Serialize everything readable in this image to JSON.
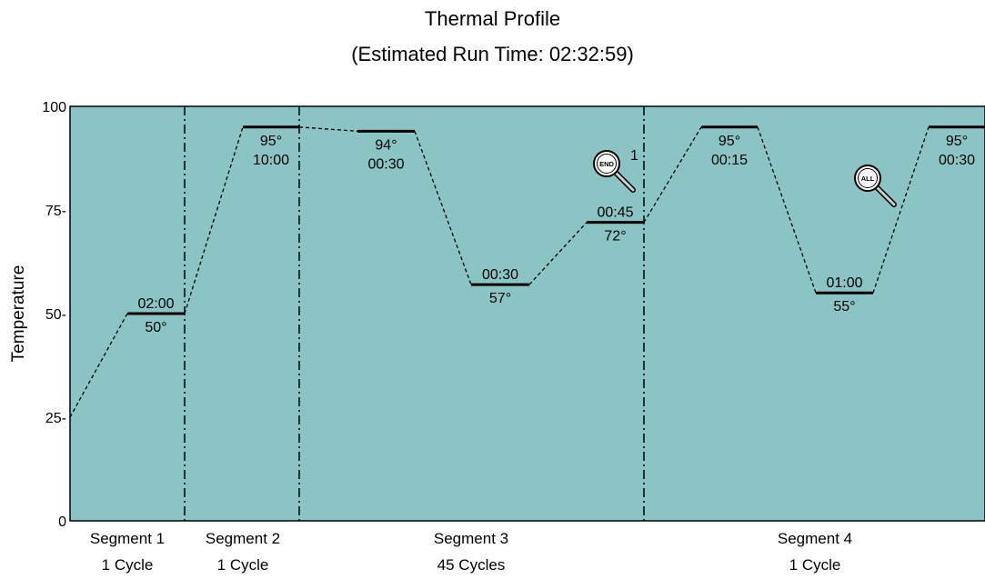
{
  "chart_data": {
    "type": "line",
    "title": "Thermal Profile",
    "subtitle": "(Estimated Run Time: 02:32:59)",
    "ylabel": "Temperature",
    "xlabel": "",
    "ylim": [
      0,
      100
    ],
    "yticks": [
      0,
      25,
      50,
      75,
      100
    ],
    "ytick_labels": [
      "0",
      "25-",
      "50-",
      "75-",
      "100"
    ],
    "grid": false,
    "plot_background": "#8bc4c4",
    "line_color": "#000000",
    "start_temp": 25,
    "segments": [
      {
        "label": "Segment 1",
        "cycles": "1 Cycle",
        "steps": [
          {
            "temp": 50,
            "temp_label": "50°",
            "time": "02:00",
            "time_position": "above"
          }
        ]
      },
      {
        "label": "Segment 2",
        "cycles": "1 Cycle",
        "steps": [
          {
            "temp": 95,
            "temp_label": "95°",
            "time": "10:00",
            "time_position": "below"
          }
        ]
      },
      {
        "label": "Segment 3",
        "cycles": "45 Cycles",
        "steps": [
          {
            "temp": 94,
            "temp_label": "94°",
            "time": "00:30",
            "time_position": "below"
          },
          {
            "temp": 57,
            "temp_label": "57°",
            "time": "00:30",
            "time_position": "above"
          },
          {
            "temp": 72,
            "temp_label": "72°",
            "time": "00:45",
            "time_position": "above"
          }
        ]
      },
      {
        "label": "Segment 4",
        "cycles": "1 Cycle",
        "steps": [
          {
            "temp": 95,
            "temp_label": "95°",
            "time": "00:15",
            "time_position": "below"
          },
          {
            "temp": 55,
            "temp_label": "55°",
            "time": "01:00",
            "time_position": "above"
          },
          {
            "temp": 95,
            "temp_label": "95°",
            "time": "00:30",
            "time_position": "below"
          }
        ]
      }
    ],
    "markers": [
      {
        "name": "end-icon",
        "icon_text": "END",
        "annotation": "1",
        "segment": 3
      },
      {
        "name": "all-icon",
        "icon_text": "ALL",
        "annotation": "",
        "segment": 4
      }
    ]
  }
}
